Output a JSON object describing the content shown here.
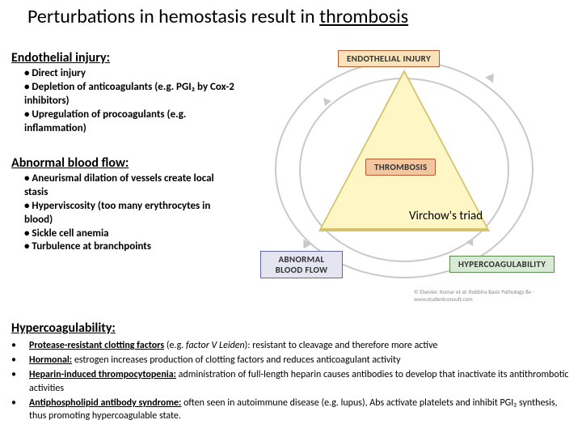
{
  "title_prefix": "Perturbations in hemostasis result in ",
  "title_underline": "thrombosis",
  "sections": {
    "endo": {
      "header": "Endothelial injury:",
      "items": [
        "Direct injury",
        "Depletion of anticoagulants (e.g. PGI₂ by Cox-2 inhibitors)",
        "Upregulation of procoagulants (e.g. inflammation)"
      ]
    },
    "flow": {
      "header": "Abnormal blood flow:",
      "items": [
        "Aneurismal dilation of vessels create local stasis",
        "Hyperviscosity (too many erythrocytes in blood)",
        "Sickle cell anemia",
        "Turbulence at branchpoints"
      ]
    },
    "hyper": {
      "header": "Hypercoagulability:",
      "items": [
        {
          "bold_u": "Protease-resistant clotting factors",
          "plain": " (e.g. ",
          "italic": "factor V Leiden",
          "rest": "): resistant to cleavage and therefore more active"
        },
        {
          "bold_u": "Hormonal:",
          "rest": " estrogen increases production of clotting factors and reduces anticoagulant activity"
        },
        {
          "bold_u": "Heparin-induced thrompocytopenia:",
          "rest": " administration of full-length heparin causes antibodies to develop that inactivate its antithrombotic activities"
        },
        {
          "bold_u": "Antiphospholipid antibody syndrome:",
          "rest": " often seen in autoimmune disease (e.g. lupus), Abs activate platelets and inhibit PGI₂ synthesis, thus promoting hypercoagulable state."
        }
      ]
    }
  },
  "diagram": {
    "box_endo": "ENDOTHELIAL INJURY",
    "box_throm": "THROMBOSIS",
    "box_abflow": "ABNORMAL BLOOD FLOW",
    "box_hyperc": "HYPERCOAGULABILITY",
    "virchow_label": "Virchow's triad",
    "copyright": "© Elsevier. Kumar et al: Robbins Basic Pathology 8e - www.studentconsult.com",
    "colors": {
      "triangle_fill": "#fef6c4",
      "triangle_border": "#d4c36a",
      "circle_stroke": "#c9c9c9",
      "box_endo_bg": "#f9e3ba",
      "box_endo_border": "#b85a2e",
      "box_throm_bg": "#f2c7a0",
      "box_abflow_bg": "#e4e5f0",
      "box_abflow_border": "#6266a6",
      "box_hyperc_bg": "#d9ead6",
      "box_hyperc_border": "#5a8a4f"
    }
  }
}
